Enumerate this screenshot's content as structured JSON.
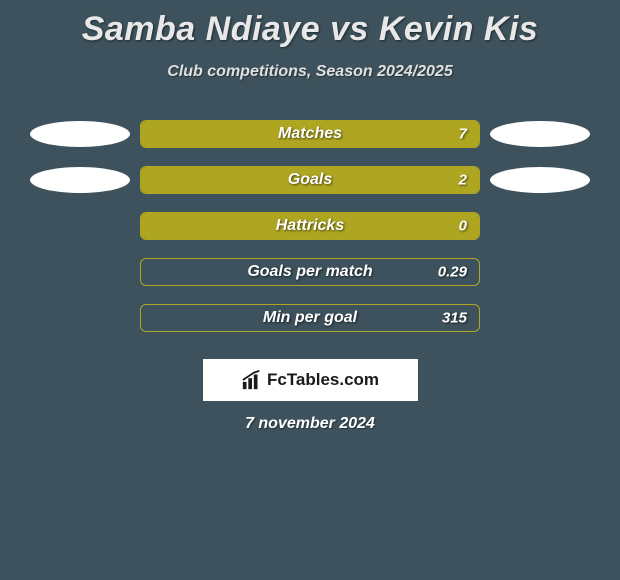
{
  "title": "Samba Ndiaye vs Kevin Kis",
  "subtitle": "Club competitions, Season 2024/2025",
  "date": "7 november 2024",
  "brand": "FcTables.com",
  "colors": {
    "background": "#3d525c",
    "bar_fill": "#aea621",
    "bar_border": "#aea621",
    "text": "#ffffff",
    "oval": "#ffffff"
  },
  "rows": [
    {
      "label": "Matches",
      "value": "7",
      "fill_pct": 100,
      "show_ovals": true
    },
    {
      "label": "Goals",
      "value": "2",
      "fill_pct": 100,
      "show_ovals": true
    },
    {
      "label": "Hattricks",
      "value": "0",
      "fill_pct": 100,
      "show_ovals": false
    },
    {
      "label": "Goals per match",
      "value": "0.29",
      "fill_pct": 0,
      "show_ovals": false
    },
    {
      "label": "Min per goal",
      "value": "315",
      "fill_pct": 0,
      "show_ovals": false
    }
  ]
}
